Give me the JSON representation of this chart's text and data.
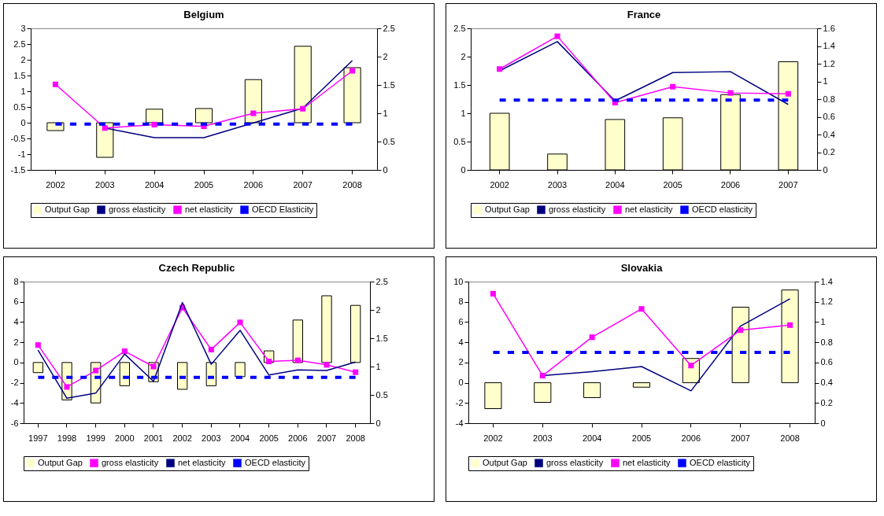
{
  "chart_data": [
    {
      "type": "bar",
      "title": "Belgium",
      "categories": [
        "2002",
        "2003",
        "2004",
        "2005",
        "2006",
        "2007",
        "2008"
      ],
      "ylim": [
        -1.5,
        3
      ],
      "yticks": [
        -1.5,
        -1,
        -0.5,
        0,
        0.5,
        1,
        1.5,
        2,
        2.5,
        3
      ],
      "y2lim": [
        0,
        2.5
      ],
      "y2ticks": [
        0,
        0.5,
        1,
        1.5,
        2,
        2.5
      ],
      "legend": "bottom",
      "series": [
        {
          "name": "Output Gap",
          "type": "bar",
          "color": "#ffffcc",
          "values": [
            -0.25,
            -1.1,
            0.43,
            0.45,
            1.37,
            2.43,
            1.75
          ]
        },
        {
          "name": "gross elasticity",
          "type": "line",
          "axis": "y2",
          "color": "#000080",
          "marker": "none",
          "line_style": "solid",
          "values": [
            null,
            0.74,
            0.57,
            0.57,
            0.83,
            1.09,
            1.93
          ]
        },
        {
          "name": "net elasticity",
          "type": "line",
          "axis": "y2",
          "color": "#ff00ff",
          "marker": "square",
          "line_style": "solid",
          "values": [
            1.51,
            0.74,
            0.8,
            0.77,
            1.0,
            1.08,
            1.75
          ]
        },
        {
          "name": "OECD Elasticity",
          "type": "line",
          "axis": "y2",
          "color": "#0000ff",
          "marker": "none",
          "line_style": "dashed",
          "values": [
            0.81,
            0.81,
            0.81,
            0.81,
            0.81,
            0.81,
            0.81
          ]
        }
      ]
    },
    {
      "type": "bar",
      "title": "France",
      "categories": [
        "2002",
        "2003",
        "2004",
        "2005",
        "2006",
        "2007"
      ],
      "ylim": [
        0,
        2.5
      ],
      "yticks": [
        0,
        0.5,
        1,
        1.5,
        2,
        2.5
      ],
      "y2lim": [
        0,
        1.6
      ],
      "y2ticks": [
        0,
        0.2,
        0.4,
        0.6,
        0.8,
        1,
        1.2,
        1.4,
        1.6
      ],
      "legend": "bottom",
      "series": [
        {
          "name": "Output Gap",
          "type": "bar",
          "color": "#ffffcc",
          "values": [
            1.0,
            0.28,
            0.89,
            0.92,
            1.33,
            1.91
          ]
        },
        {
          "name": "gross elasticity",
          "type": "line",
          "axis": "y2",
          "color": "#000080",
          "marker": "none",
          "line_style": "solid",
          "values": [
            1.12,
            1.45,
            0.78,
            1.1,
            1.11,
            0.74
          ]
        },
        {
          "name": "net elasticity",
          "type": "line",
          "axis": "y2",
          "color": "#ff00ff",
          "marker": "square",
          "line_style": "solid",
          "values": [
            1.14,
            1.51,
            0.76,
            0.94,
            0.87,
            0.86
          ]
        },
        {
          "name": "OECD elasticity",
          "type": "line",
          "axis": "y2",
          "color": "#0000ff",
          "marker": "none",
          "line_style": "dashed",
          "values": [
            0.79,
            0.79,
            0.79,
            0.79,
            0.79,
            0.79
          ]
        }
      ]
    },
    {
      "type": "bar",
      "title": "Czech Republic",
      "categories": [
        "1997",
        "1998",
        "1999",
        "2000",
        "2001",
        "2002",
        "2003",
        "2004",
        "2005",
        "2006",
        "2007",
        "2008"
      ],
      "ylim": [
        -6,
        8
      ],
      "yticks": [
        -6,
        -4,
        -2,
        0,
        2,
        4,
        6,
        8
      ],
      "y2lim": [
        0,
        2.5
      ],
      "y2ticks": [
        0,
        0.5,
        1,
        1.5,
        2,
        2.5
      ],
      "legend": "bottom",
      "series": [
        {
          "name": "Output Gap",
          "type": "bar",
          "color": "#ffffcc",
          "values": [
            -1.0,
            -3.7,
            -4.0,
            -2.3,
            -1.9,
            -2.65,
            -2.3,
            -1.4,
            1.15,
            4.2,
            6.6,
            5.65
          ]
        },
        {
          "name": "gross elasticity",
          "type": "line",
          "axis": "y2",
          "color": "#ff00ff",
          "marker": "square",
          "line_style": "solid",
          "values": [
            1.38,
            0.64,
            0.93,
            1.27,
            1.0,
            2.04,
            1.3,
            1.78,
            1.09,
            1.11,
            1.03,
            0.9
          ]
        },
        {
          "name": "net elasticity",
          "type": "line",
          "axis": "y2",
          "color": "#000080",
          "marker": "none",
          "line_style": "solid",
          "values": [
            1.29,
            0.44,
            0.53,
            1.22,
            0.74,
            2.13,
            1.04,
            1.64,
            0.85,
            0.94,
            0.93,
            1.08
          ]
        },
        {
          "name": "OECD elasticity",
          "type": "line",
          "axis": "y2",
          "color": "#0000ff",
          "marker": "none",
          "line_style": "dashed",
          "values": [
            0.81,
            0.81,
            0.81,
            0.81,
            0.81,
            0.81,
            0.81,
            0.81,
            0.81,
            0.81,
            0.81,
            0.81
          ]
        }
      ]
    },
    {
      "type": "bar",
      "title": "Slovakia",
      "categories": [
        "2002",
        "2003",
        "2004",
        "2005",
        "2006",
        "2007",
        "2008"
      ],
      "ylim": [
        -4,
        10
      ],
      "yticks": [
        -4,
        -2,
        0,
        2,
        4,
        6,
        8,
        10
      ],
      "y2lim": [
        0,
        1.4
      ],
      "y2ticks": [
        0,
        0.2,
        0.4,
        0.6,
        0.8,
        1,
        1.2,
        1.4
      ],
      "legend": "bottom",
      "series": [
        {
          "name": "Output Gap",
          "type": "bar",
          "color": "#ffffcc",
          "values": [
            -2.56,
            -1.94,
            -1.47,
            -0.44,
            2.4,
            7.47,
            9.17
          ]
        },
        {
          "name": "gross elasticity",
          "type": "line",
          "axis": "y2",
          "color": "#000080",
          "marker": "none",
          "line_style": "solid",
          "values": [
            null,
            0.47,
            0.51,
            0.56,
            0.32,
            0.96,
            1.23
          ]
        },
        {
          "name": "net elasticity",
          "type": "line",
          "axis": "y2",
          "color": "#ff00ff",
          "marker": "square",
          "line_style": "solid",
          "values": [
            1.28,
            0.47,
            0.85,
            1.13,
            0.57,
            0.92,
            0.97
          ]
        },
        {
          "name": "OECD elasticity",
          "type": "line",
          "axis": "y2",
          "color": "#0000ff",
          "marker": "none",
          "line_style": "dashed",
          "values": [
            0.7,
            0.7,
            0.7,
            0.7,
            0.7,
            0.7,
            0.7
          ]
        }
      ]
    }
  ]
}
